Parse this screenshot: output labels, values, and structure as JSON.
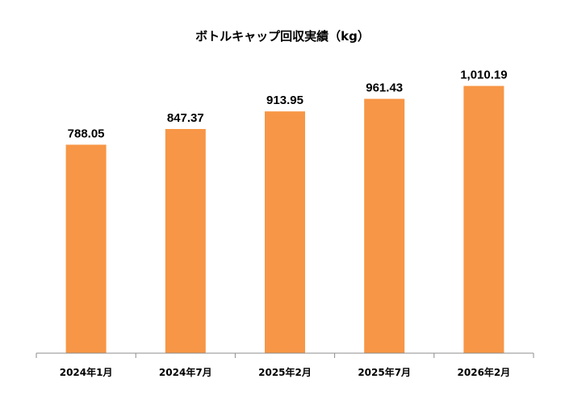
{
  "chart_data": {
    "type": "bar",
    "title": "ボトルキャップ回収実績（kg）",
    "categories": [
      "2024年1月",
      "2024年7月",
      "2025年2月",
      "2025年7月",
      "2026年2月"
    ],
    "values": [
      788.05,
      847.37,
      913.95,
      961.43,
      1010.19
    ],
    "data_labels": [
      "788.05",
      "847.37",
      "913.95",
      "961.43",
      "1,010.19"
    ],
    "xlabel": "",
    "ylabel": "",
    "ylim": [
      0,
      1015
    ],
    "grid": false,
    "legend": "none",
    "bar_color": "#F79646"
  }
}
